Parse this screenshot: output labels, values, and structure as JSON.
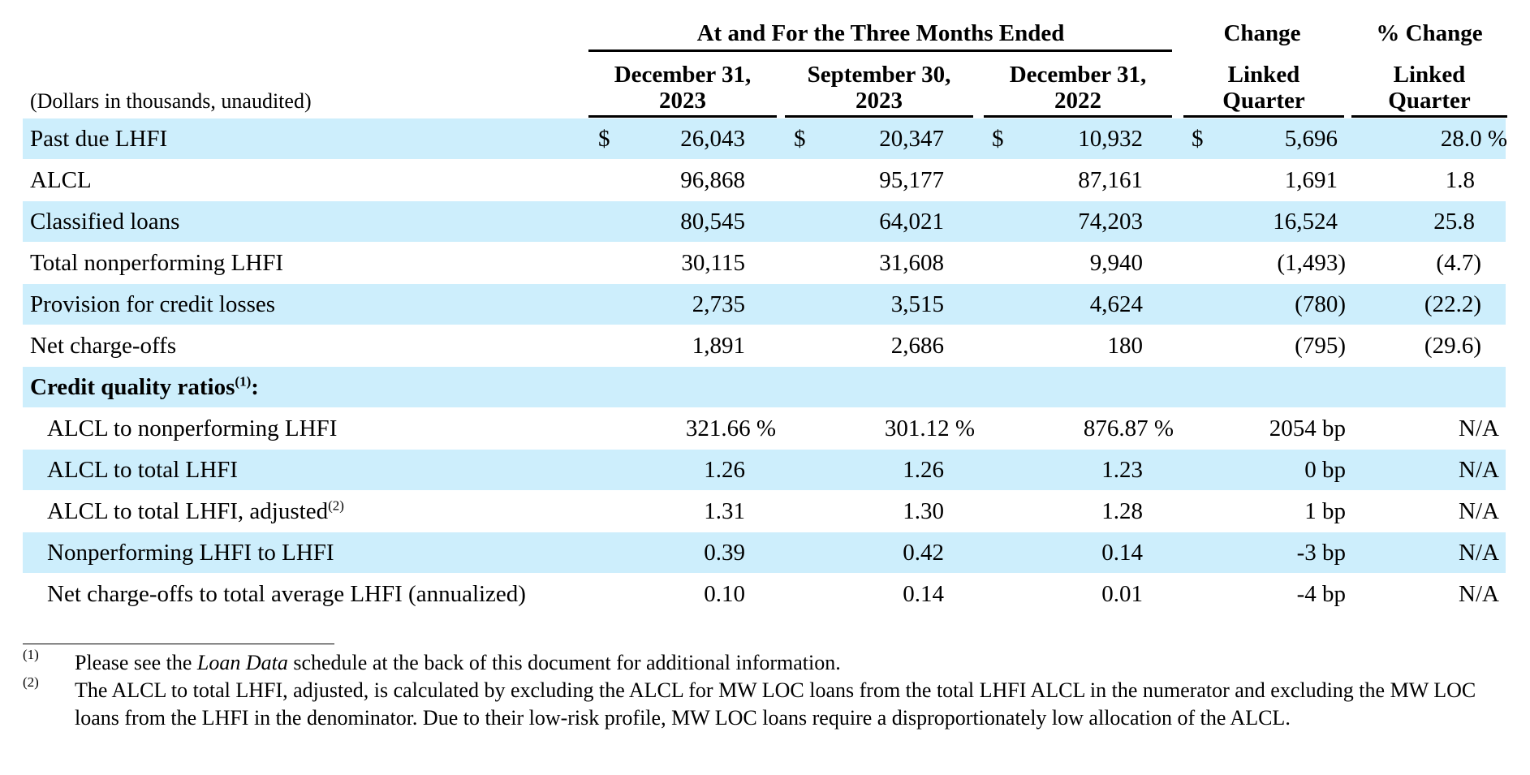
{
  "header": {
    "units": "(Dollars in thousands, unaudited)",
    "group_title": "At and For the Three Months Ended",
    "change_title": "Change",
    "pct_change_title": "% Change",
    "columns": [
      {
        "line1": "December 31,",
        "line2": "2023"
      },
      {
        "line1": "September 30,",
        "line2": "2023"
      },
      {
        "line1": "December 31,",
        "line2": "2022"
      },
      {
        "line1": "Linked",
        "line2": "Quarter"
      },
      {
        "line1": "Linked",
        "line2": "Quarter"
      }
    ]
  },
  "currency_symbol": "$",
  "rows": [
    {
      "label": "Past due LHFI",
      "c1": "26,043",
      "c2": "20,347",
      "c3": "10,932",
      "chg": "5,696",
      "pct": "28.0 %"
    },
    {
      "label": "ALCL",
      "c1": "96,868",
      "c2": "95,177",
      "c3": "87,161",
      "chg": "1,691",
      "pct": "1.8"
    },
    {
      "label": "Classified loans",
      "c1": "80,545",
      "c2": "64,021",
      "c3": "74,203",
      "chg": "16,524",
      "pct": "25.8"
    },
    {
      "label": "Total nonperforming LHFI",
      "c1": "30,115",
      "c2": "31,608",
      "c3": "9,940",
      "chg": "(1,493)",
      "pct": "(4.7)"
    },
    {
      "label": "Provision for credit losses",
      "c1": "2,735",
      "c2": "3,515",
      "c3": "4,624",
      "chg": "(780)",
      "pct": "(22.2)"
    },
    {
      "label": "Net charge-offs",
      "c1": "1,891",
      "c2": "2,686",
      "c3": "180",
      "chg": "(795)",
      "pct": "(29.6)"
    },
    {
      "label": "Credit quality ratios",
      "sup": "(1)",
      "suffix": ":"
    },
    {
      "label": "ALCL to nonperforming LHFI",
      "c1": "321.66 %",
      "c2": "301.12 %",
      "c3": "876.87 %",
      "chg": "2054 bp",
      "pct": "N/A"
    },
    {
      "label": "ALCL to total LHFI",
      "c1": "1.26",
      "c2": "1.26",
      "c3": "1.23",
      "chg": "0 bp",
      "pct": "N/A"
    },
    {
      "label": "ALCL to total LHFI, adjusted",
      "sup": "(2)",
      "c1": "1.31",
      "c2": "1.30",
      "c3": "1.28",
      "chg": "1 bp",
      "pct": "N/A"
    },
    {
      "label": "Nonperforming LHFI to LHFI",
      "c1": "0.39",
      "c2": "0.42",
      "c3": "0.14",
      "chg": "-3 bp",
      "pct": "N/A"
    },
    {
      "label": "Net charge-offs to total average LHFI (annualized)",
      "c1": "0.10",
      "c2": "0.14",
      "c3": "0.01",
      "chg": "-4 bp",
      "pct": "N/A"
    }
  ],
  "footnotes": [
    {
      "mark": "(1)",
      "pre": "Please see the ",
      "italic": "Loan Data",
      "post": " schedule at the back of this document for additional information."
    },
    {
      "mark": "(2)",
      "text": "The ALCL to total LHFI, adjusted, is calculated by excluding the ALCL for MW LOC loans from the total LHFI ALCL in the numerator and excluding the MW LOC loans from the LHFI in the denominator. Due to their low-risk profile, MW LOC loans require a disproportionately low allocation of the ALCL."
    }
  ]
}
